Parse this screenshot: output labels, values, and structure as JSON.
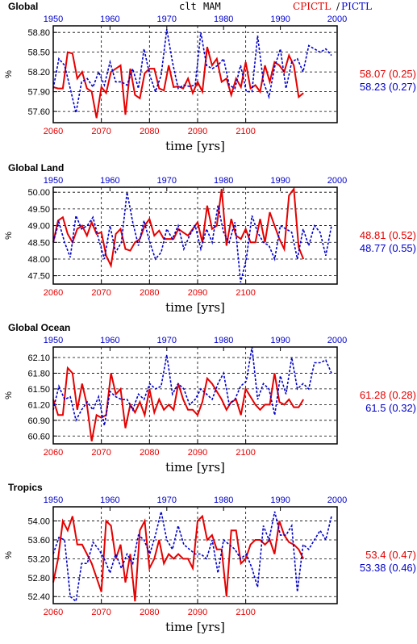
{
  "header": {
    "variable": "clt",
    "season": "MAM",
    "label_cpictl": "CPICTL",
    "label_slash": "/",
    "label_pictl": "PICTL"
  },
  "colors": {
    "cpictl": "#e60000",
    "pictl": "#0000cc",
    "axis": "#000000"
  },
  "chart_data": [
    {
      "type": "line",
      "title": "Global",
      "ylabel": "%",
      "xlabel": "time [yrs]",
      "x_bottom_ticks": [
        "2060",
        "2070",
        "2080",
        "2090",
        "2100"
      ],
      "x_top_ticks": [
        "1950",
        "1960",
        "1970",
        "1980",
        "1990",
        "2000"
      ],
      "y_ticks": [
        "57.60",
        "57.90",
        "58.20",
        "58.50",
        "58.80"
      ],
      "ylim": [
        57.43,
        58.9
      ],
      "grid": "dashed",
      "stats": {
        "cpictl": "58.07 (0.25)",
        "pictl": "58.23 (0.27)"
      },
      "series": [
        {
          "name": "CPICTL",
          "axis": "bottom",
          "x_start": 2060,
          "values": [
            57.97,
            57.95,
            57.95,
            58.5,
            58.48,
            58.1,
            58.2,
            57.95,
            57.9,
            57.5,
            57.97,
            57.88,
            58.2,
            58.25,
            58.3,
            57.55,
            58.25,
            57.85,
            57.8,
            58.18,
            58.25,
            58.25,
            57.95,
            57.92,
            58.3,
            57.97,
            57.98,
            57.95,
            58.1,
            57.88,
            58.05,
            57.9,
            58.58,
            58.3,
            58.4,
            58.05,
            58.1,
            57.85,
            58.1,
            57.97,
            58.35,
            57.95,
            58.0,
            57.9,
            58.3,
            58.05,
            58.35,
            58.3,
            58.2,
            58.45,
            58.3,
            57.82,
            57.88
          ]
        },
        {
          "name": "PICTL",
          "axis": "top",
          "x_start": 1950,
          "values": [
            57.95,
            58.4,
            58.3,
            57.95,
            57.58,
            58.05,
            58.1,
            57.97,
            58.2,
            58.0,
            58.35,
            58.05,
            58.05,
            58.0,
            58.25,
            57.95,
            58.55,
            58.15,
            57.9,
            58.15,
            58.85,
            58.35,
            57.95,
            58.0,
            57.98,
            58.0,
            58.8,
            58.3,
            58.25,
            58.3,
            58.4,
            58.0,
            57.95,
            58.3,
            57.9,
            57.9,
            58.75,
            58.05,
            57.82,
            58.28,
            58.55,
            57.95,
            58.35,
            58.4,
            58.2,
            58.6,
            58.55,
            58.5,
            58.55,
            58.45
          ]
        }
      ]
    },
    {
      "type": "line",
      "title": "Global Land",
      "ylabel": "%",
      "xlabel": "time [yrs]",
      "x_bottom_ticks": [
        "2060",
        "2070",
        "2080",
        "2090",
        "2100"
      ],
      "x_top_ticks": [
        "1950",
        "1960",
        "1970",
        "1980",
        "1990",
        "2000"
      ],
      "y_ticks": [
        "47.50",
        "48.00",
        "48.50",
        "49.00",
        "49.50",
        "50.00"
      ],
      "ylim": [
        47.25,
        50.15
      ],
      "grid": "dashed",
      "stats": {
        "cpictl": "48.81 (0.52)",
        "pictl": "48.77 (0.55)"
      },
      "series": [
        {
          "name": "CPICTL",
          "axis": "bottom",
          "x_start": 2060,
          "values": [
            48.5,
            49.15,
            49.25,
            48.75,
            48.5,
            48.9,
            49.0,
            48.7,
            49.1,
            48.75,
            48.8,
            48.1,
            47.8,
            48.75,
            48.9,
            48.3,
            48.25,
            48.5,
            48.6,
            49.0,
            49.2,
            48.7,
            48.85,
            48.6,
            48.6,
            48.6,
            48.9,
            48.8,
            48.7,
            48.9,
            49.1,
            48.5,
            49.6,
            48.9,
            49.0,
            50.1,
            48.4,
            49.2,
            48.7,
            48.6,
            48.9,
            48.5,
            48.5,
            49.2,
            48.5,
            49.4,
            49.0,
            48.6,
            48.3,
            49.9,
            50.1,
            48.35,
            48.0
          ]
        },
        {
          "name": "PICTL",
          "axis": "top",
          "x_start": 1950,
          "values": [
            48.5,
            49.1,
            48.5,
            48.05,
            49.3,
            48.9,
            49.0,
            49.25,
            48.6,
            48.0,
            49.0,
            48.2,
            48.5,
            50.0,
            49.1,
            48.4,
            49.15,
            48.5,
            48.0,
            48.2,
            48.9,
            48.6,
            49.0,
            48.3,
            48.7,
            49.0,
            48.3,
            48.9,
            48.5,
            49.6,
            48.8,
            48.5,
            49.1,
            47.3,
            48.0,
            49.3,
            48.8,
            48.5,
            48.4,
            48.0,
            49.0,
            48.9,
            48.8,
            48.0,
            48.9,
            48.4,
            49.0,
            48.8,
            48.1,
            49.0
          ]
        }
      ]
    },
    {
      "type": "line",
      "title": "Global Ocean",
      "ylabel": "%",
      "xlabel": "time [yrs]",
      "x_bottom_ticks": [
        "2060",
        "2070",
        "2080",
        "2090",
        "2100"
      ],
      "x_top_ticks": [
        "1950",
        "1960",
        "1970",
        "1980",
        "1990",
        "2000"
      ],
      "y_ticks": [
        "60.60",
        "60.90",
        "61.20",
        "61.50",
        "61.80",
        "62.10"
      ],
      "ylim": [
        60.45,
        62.3
      ],
      "grid": "dashed",
      "stats": {
        "cpictl": "61.28 (0.28)",
        "pictl": "61.5 (0.32)"
      },
      "series": [
        {
          "name": "CPICTL",
          "axis": "bottom",
          "x_start": 2060,
          "values": [
            61.3,
            61.0,
            61.0,
            61.9,
            61.8,
            61.1,
            61.6,
            61.2,
            60.5,
            61.0,
            60.95,
            61.0,
            61.8,
            61.4,
            61.5,
            60.75,
            61.2,
            61.05,
            61.25,
            61.0,
            61.5,
            61.05,
            61.3,
            61.1,
            61.2,
            61.1,
            61.6,
            61.3,
            61.1,
            61.1,
            61.0,
            61.25,
            61.7,
            61.6,
            61.45,
            61.3,
            61.1,
            61.25,
            61.3,
            61.0,
            61.5,
            61.35,
            61.2,
            61.1,
            61.2,
            61.2,
            61.8,
            61.25,
            61.2,
            61.3,
            61.15,
            61.15,
            61.3
          ]
        },
        {
          "name": "PICTL",
          "axis": "top",
          "x_start": 1950,
          "values": [
            61.1,
            61.55,
            61.3,
            61.35,
            60.9,
            61.1,
            61.25,
            61.1,
            61.35,
            60.8,
            61.45,
            61.35,
            61.3,
            61.3,
            61.1,
            61.4,
            61.3,
            61.6,
            61.5,
            61.55,
            62.15,
            61.4,
            61.6,
            61.5,
            61.2,
            61.3,
            61.5,
            61.4,
            61.3,
            61.6,
            61.8,
            61.2,
            61.3,
            61.55,
            61.65,
            62.3,
            61.3,
            61.6,
            61.5,
            61.0,
            61.75,
            61.4,
            62.1,
            61.5,
            61.6,
            61.5,
            62.0,
            62.0,
            62.05,
            61.8
          ]
        }
      ]
    },
    {
      "type": "line",
      "title": "Tropics",
      "ylabel": "%",
      "xlabel": "time [yrs]",
      "x_bottom_ticks": [
        "2060",
        "2070",
        "2080",
        "2090",
        "2100"
      ],
      "x_top_ticks": [
        "1950",
        "1960",
        "1970",
        "1980",
        "1990",
        "2000"
      ],
      "y_ticks": [
        "52.40",
        "52.80",
        "53.20",
        "53.60",
        "54.00"
      ],
      "ylim": [
        52.25,
        54.3
      ],
      "grid": "dashed",
      "stats": {
        "cpictl": "53.4 (0.47)",
        "pictl": "53.38 (0.46)"
      },
      "series": [
        {
          "name": "CPICTL",
          "axis": "bottom",
          "x_start": 2060,
          "values": [
            52.7,
            53.2,
            54.0,
            53.8,
            54.1,
            53.5,
            53.5,
            53.3,
            53.1,
            52.8,
            52.5,
            54.0,
            53.9,
            53.2,
            53.5,
            52.7,
            53.3,
            52.3,
            53.8,
            54.0,
            53.0,
            53.2,
            53.6,
            53.1,
            53.3,
            53.2,
            53.3,
            53.2,
            53.2,
            53.0,
            54.0,
            54.1,
            53.6,
            53.7,
            53.4,
            53.4,
            52.4,
            53.8,
            53.8,
            53.1,
            53.2,
            53.5,
            53.6,
            53.6,
            53.5,
            53.6,
            53.3,
            54.0,
            53.7,
            53.55,
            53.5,
            53.4,
            53.2
          ]
        },
        {
          "name": "PICTL",
          "axis": "top",
          "x_start": 1950,
          "values": [
            53.3,
            53.65,
            53.6,
            52.4,
            52.3,
            53.1,
            53.1,
            53.55,
            53.4,
            53.2,
            52.9,
            53.3,
            53.0,
            53.3,
            53.1,
            53.7,
            53.6,
            53.3,
            53.7,
            54.2,
            53.6,
            53.4,
            53.9,
            53.5,
            53.4,
            53.3,
            53.3,
            53.2,
            53.6,
            52.9,
            53.6,
            53.5,
            53.4,
            53.2,
            53.3,
            53.0,
            52.6,
            53.9,
            53.6,
            54.2,
            53.7,
            53.7,
            53.9,
            52.5,
            53.5,
            53.4,
            53.6,
            53.8,
            53.6,
            54.1
          ]
        }
      ]
    }
  ]
}
